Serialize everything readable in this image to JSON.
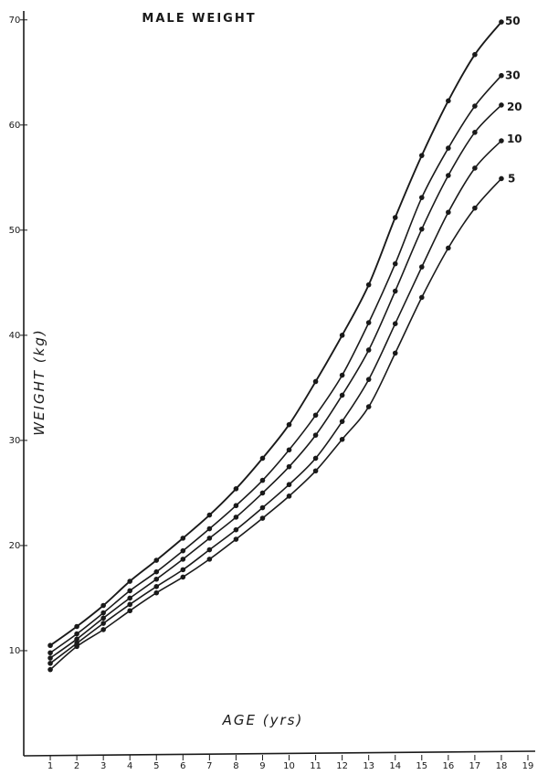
{
  "chart_data": {
    "type": "line",
    "title": "MALE WEIGHT",
    "xlabel": "AGE (yrs)",
    "ylabel": "WEIGHT (kg)",
    "x_ticks": [
      "1",
      "2",
      "3",
      "4",
      "5",
      "6",
      "7",
      "8",
      "9",
      "10",
      "11",
      "12",
      "13",
      "14",
      "15",
      "16",
      "17",
      "18",
      "19"
    ],
    "y_ticks": [
      {
        "value": 10,
        "label": "10"
      },
      {
        "value": 20,
        "label": "20"
      },
      {
        "value": 30,
        "label": "30"
      },
      {
        "value": 40,
        "label": "40"
      },
      {
        "value": 50,
        "label": "50"
      },
      {
        "value": 60,
        "label": "60"
      },
      {
        "value": 70,
        "label": "70"
      }
    ],
    "xlim": [
      0,
      19
    ],
    "ylim": [
      0,
      70.5
    ],
    "grid": false,
    "x": [
      1,
      2,
      3,
      4,
      5,
      6,
      7,
      8,
      9,
      10,
      11,
      12,
      13,
      14,
      15,
      16,
      17,
      18
    ],
    "series": [
      {
        "name": "50",
        "values": [
          10.5,
          12.3,
          14.3,
          16.6,
          18.6,
          20.7,
          22.9,
          25.4,
          28.3,
          31.5,
          35.6,
          40.0,
          44.8,
          51.2,
          57.1,
          62.3,
          66.7,
          69.8
        ]
      },
      {
        "name": "30",
        "values": [
          9.8,
          11.6,
          13.6,
          15.7,
          17.5,
          19.5,
          21.6,
          23.8,
          26.2,
          29.1,
          32.4,
          36.2,
          41.2,
          46.8,
          53.1,
          57.8,
          61.8,
          64.7
        ]
      },
      {
        "name": "20",
        "values": [
          9.3,
          11.1,
          13.1,
          15.0,
          16.8,
          18.7,
          20.7,
          22.7,
          25.0,
          27.5,
          30.5,
          34.3,
          38.6,
          44.2,
          50.1,
          55.2,
          59.3,
          61.9
        ]
      },
      {
        "name": "10",
        "values": [
          8.8,
          10.7,
          12.6,
          14.4,
          16.1,
          17.7,
          19.6,
          21.5,
          23.6,
          25.8,
          28.3,
          31.8,
          35.8,
          41.1,
          46.5,
          51.7,
          55.9,
          58.5
        ]
      },
      {
        "name": "5",
        "values": [
          8.2,
          10.4,
          12.0,
          13.8,
          15.5,
          17.0,
          18.7,
          20.6,
          22.6,
          24.7,
          27.1,
          30.1,
          33.2,
          38.3,
          43.6,
          48.3,
          52.1,
          54.9
        ]
      }
    ]
  }
}
